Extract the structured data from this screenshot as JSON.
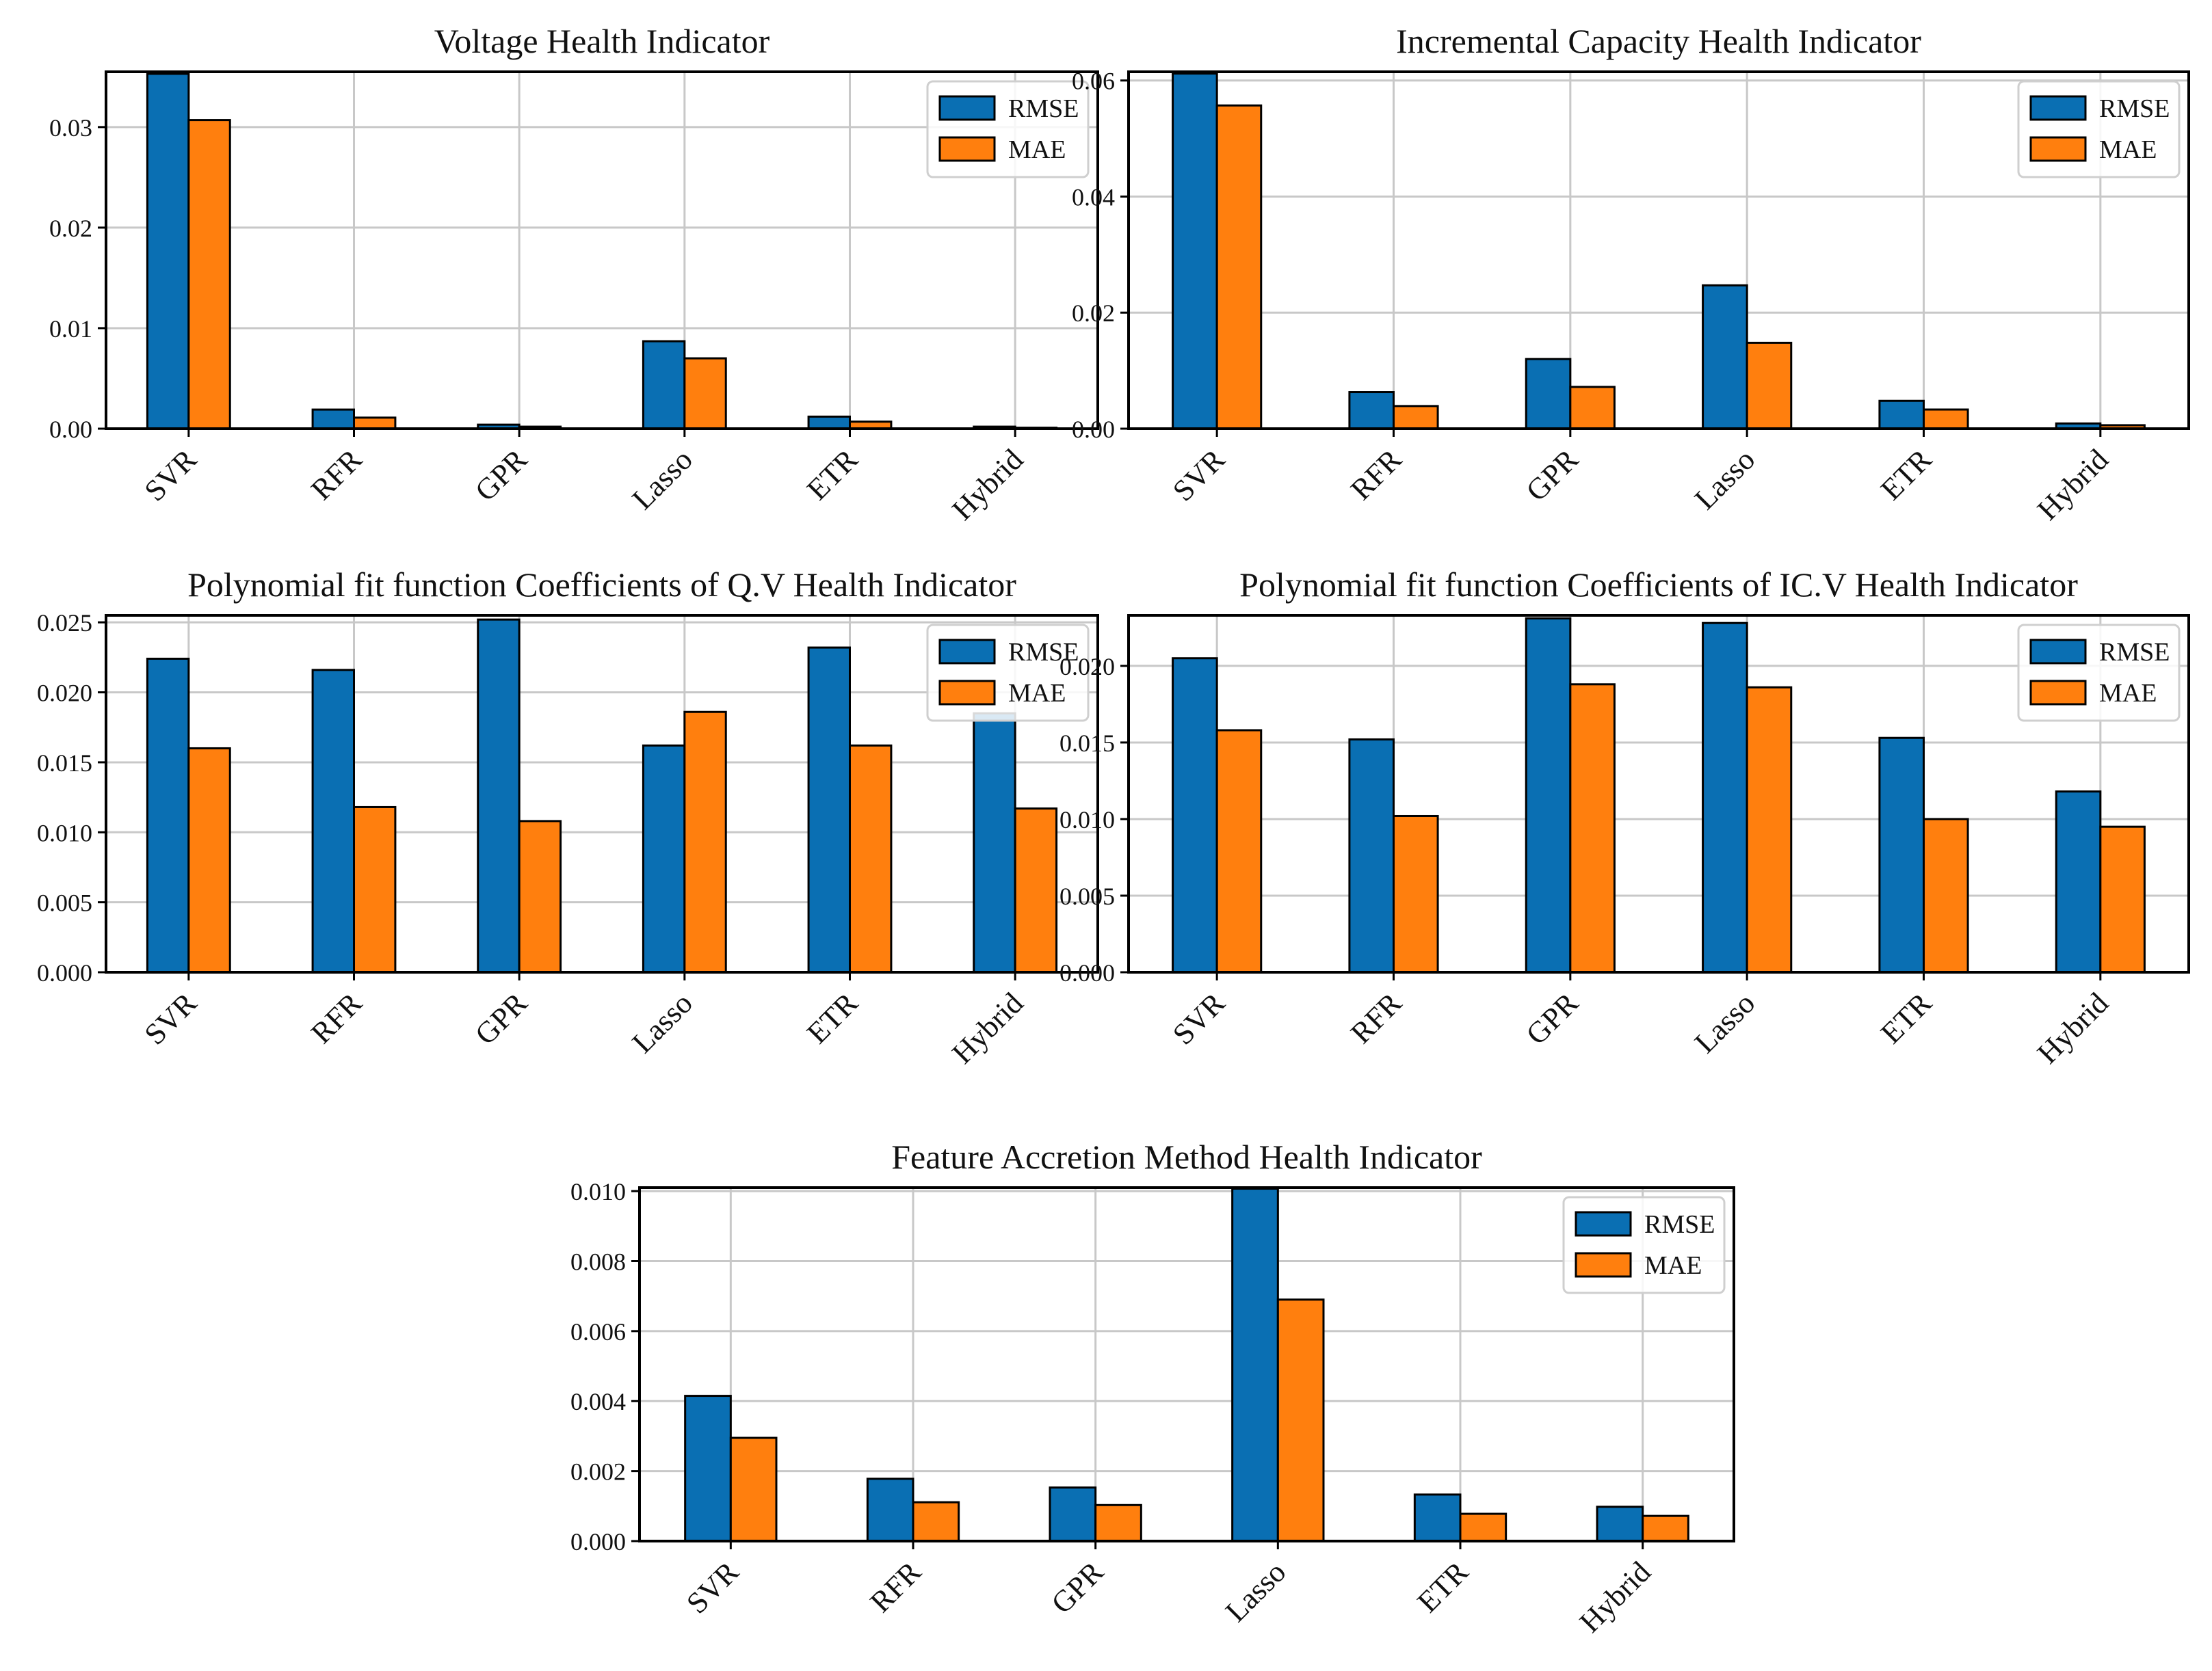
{
  "figure": {
    "colors": {
      "rmse": "#0a6fb3",
      "mae": "#ff7f0e",
      "grid": "#c8c8c8",
      "axis": "#000000"
    }
  },
  "chart_data": [
    {
      "type": "bar",
      "title": "Voltage Health Indicator",
      "xlabel": "",
      "ylabel": "",
      "categories": [
        "SVR",
        "RFR",
        "GPR",
        "Lasso",
        "ETR",
        "Hybrid"
      ],
      "series": [
        {
          "name": "RMSE",
          "values": [
            0.0353,
            0.0019,
            0.0004,
            0.0087,
            0.0012,
            0.0002
          ]
        },
        {
          "name": "MAE",
          "values": [
            0.0307,
            0.0011,
            0.0002,
            0.007,
            0.0007,
            0.0001
          ]
        }
      ],
      "ylim": [
        0,
        0.0355
      ],
      "yticks": [
        0,
        0.01,
        0.02,
        0.03
      ],
      "ytick_labels": [
        "0.00",
        "0.01",
        "0.02",
        "0.03"
      ],
      "grid": true,
      "legend_position": "top-right"
    },
    {
      "type": "bar",
      "title": "Incremental Capacity Health Indicator",
      "xlabel": "",
      "ylabel": "",
      "categories": [
        "SVR",
        "RFR",
        "GPR",
        "Lasso",
        "ETR",
        "Hybrid"
      ],
      "series": [
        {
          "name": "RMSE",
          "values": [
            0.0612,
            0.0063,
            0.012,
            0.0247,
            0.0048,
            0.0009
          ]
        },
        {
          "name": "MAE",
          "values": [
            0.0557,
            0.0039,
            0.0072,
            0.0148,
            0.0033,
            0.0006
          ]
        }
      ],
      "ylim": [
        0,
        0.0615
      ],
      "yticks": [
        0,
        0.02,
        0.04,
        0.06
      ],
      "ytick_labels": [
        "0.00",
        "0.02",
        "0.04",
        "0.06"
      ],
      "grid": true,
      "legend_position": "top-right"
    },
    {
      "type": "bar",
      "title": "Polynomial fit function Coefficients of Q.V Health Indicator",
      "xlabel": "",
      "ylabel": "",
      "categories": [
        "SVR",
        "RFR",
        "GPR",
        "Lasso",
        "ETR",
        "Hybrid"
      ],
      "series": [
        {
          "name": "RMSE",
          "values": [
            0.0224,
            0.0216,
            0.0252,
            0.0162,
            0.0232,
            0.0185
          ]
        },
        {
          "name": "MAE",
          "values": [
            0.016,
            0.0118,
            0.0108,
            0.0186,
            0.0162,
            0.0117
          ]
        }
      ],
      "ylim": [
        0,
        0.0255
      ],
      "yticks": [
        0,
        0.005,
        0.01,
        0.015,
        0.02,
        0.025
      ],
      "ytick_labels": [
        "0.000",
        "0.005",
        "0.010",
        "0.015",
        "0.020",
        "0.025"
      ],
      "grid": true,
      "legend_position": "top-right"
    },
    {
      "type": "bar",
      "title": "Polynomial fit function Coefficients of IC.V Health Indicator",
      "xlabel": "",
      "ylabel": "",
      "categories": [
        "SVR",
        "RFR",
        "GPR",
        "Lasso",
        "ETR",
        "Hybrid"
      ],
      "series": [
        {
          "name": "RMSE",
          "values": [
            0.0205,
            0.0152,
            0.0231,
            0.0228,
            0.0153,
            0.0118
          ]
        },
        {
          "name": "MAE",
          "values": [
            0.0158,
            0.0102,
            0.0188,
            0.0186,
            0.01,
            0.0095
          ]
        }
      ],
      "ylim": [
        0,
        0.0233
      ],
      "yticks": [
        0,
        0.005,
        0.01,
        0.015,
        0.02
      ],
      "ytick_labels": [
        "0.000",
        "0.005",
        "0.010",
        "0.015",
        "0.020"
      ],
      "grid": true,
      "legend_position": "top-right"
    },
    {
      "type": "bar",
      "title": "Feature Accretion Method Health Indicator",
      "xlabel": "",
      "ylabel": "",
      "categories": [
        "SVR",
        "RFR",
        "GPR",
        "Lasso",
        "ETR",
        "Hybrid"
      ],
      "series": [
        {
          "name": "RMSE",
          "values": [
            0.00415,
            0.00178,
            0.00153,
            0.01007,
            0.00133,
            0.00098
          ]
        },
        {
          "name": "MAE",
          "values": [
            0.00295,
            0.00111,
            0.00103,
            0.0069,
            0.00078,
            0.00072
          ]
        }
      ],
      "ylim": [
        0,
        0.0101
      ],
      "yticks": [
        0,
        0.002,
        0.004,
        0.006,
        0.008,
        0.01
      ],
      "ytick_labels": [
        "0.000",
        "0.002",
        "0.004",
        "0.006",
        "0.008",
        "0.010"
      ],
      "grid": true,
      "legend_position": "top-right"
    }
  ]
}
